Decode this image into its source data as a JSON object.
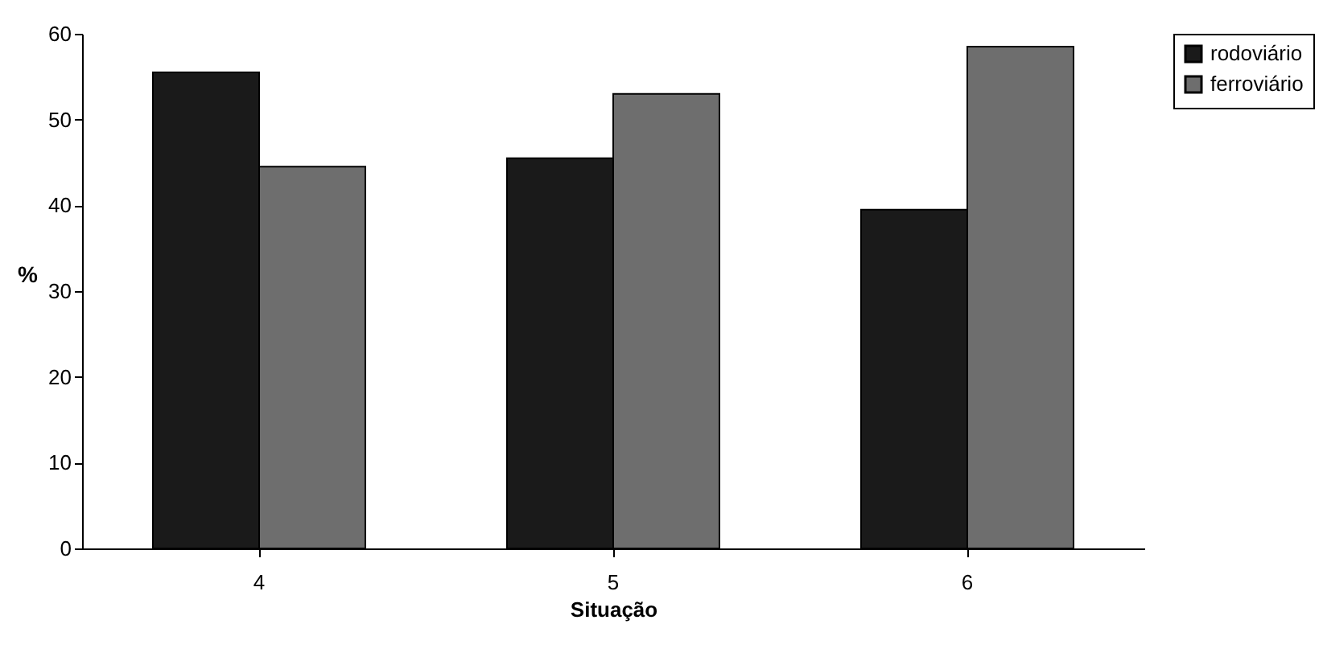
{
  "chart_data": {
    "type": "bar",
    "xlabel": "Situação",
    "ylabel": "%",
    "categories": [
      "4",
      "5",
      "6"
    ],
    "series": [
      {
        "name": "rodoviário",
        "color": "#1a1a1a",
        "values": [
          55.5,
          45.5,
          39.5
        ]
      },
      {
        "name": "ferroviário",
        "color": "#6e6e6e",
        "values": [
          44.5,
          53,
          58.5
        ]
      }
    ],
    "ylim": [
      0,
      60
    ],
    "yticks": [
      0,
      10,
      20,
      30,
      40,
      50,
      60
    ],
    "grid": false,
    "legend": "right"
  }
}
